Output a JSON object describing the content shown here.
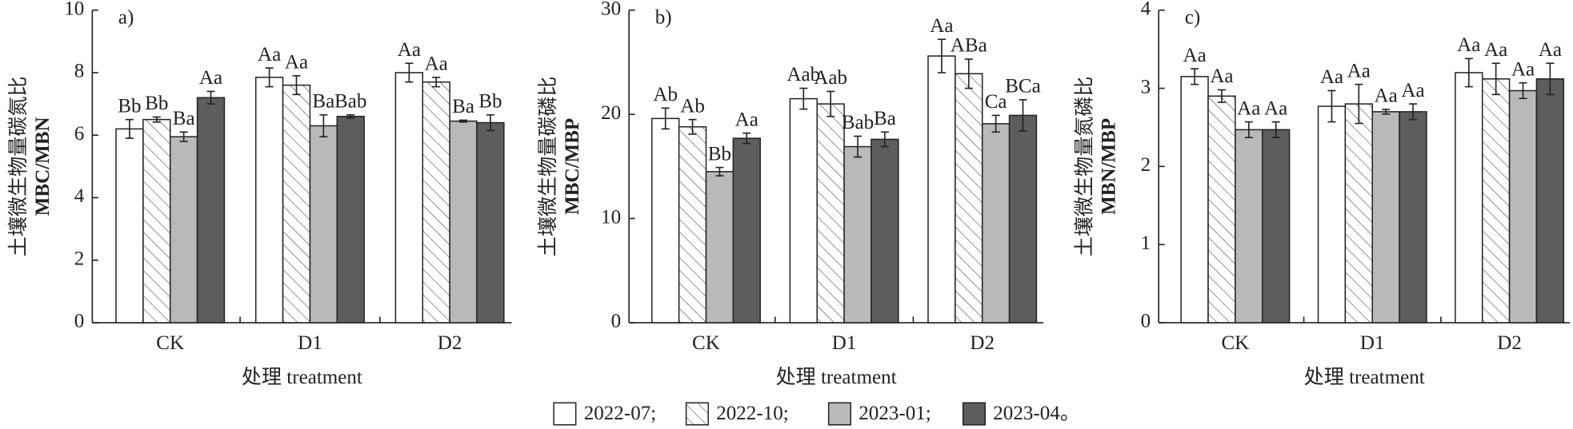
{
  "chart_data": [
    {
      "type": "bar",
      "panel": "a)",
      "ylabel": [
        "土壤微生物量碳氮比",
        "MBC/MBN"
      ],
      "xlabel": "处理 treatment",
      "categories": [
        "CK",
        "D1",
        "D2"
      ],
      "ylim": [
        0,
        10
      ],
      "yticks": [
        0,
        2,
        4,
        6,
        8,
        10
      ],
      "series": [
        {
          "color": "#ffffff",
          "hatch": false,
          "values": [
            6.2,
            7.85,
            8.0
          ],
          "errors": [
            0.3,
            0.3,
            0.3
          ],
          "letters": [
            "Bb",
            "Aa",
            "Aa"
          ]
        },
        {
          "color": "#ffffff",
          "hatch": true,
          "values": [
            6.5,
            7.6,
            7.7
          ],
          "errors": [
            0.08,
            0.3,
            0.15
          ],
          "letters": [
            "Bb",
            "Aa",
            "Aa"
          ]
        },
        {
          "color": "#b9b9b9",
          "hatch": false,
          "values": [
            5.95,
            6.3,
            6.45
          ],
          "errors": [
            0.15,
            0.35,
            0.03
          ],
          "letters": [
            "Ba",
            "Ba",
            "Ba"
          ]
        },
        {
          "color": "#5f5c5c",
          "hatch": false,
          "values": [
            7.2,
            6.6,
            6.4
          ],
          "errors": [
            0.2,
            0.05,
            0.25
          ],
          "letters": [
            "Aa",
            "Bab",
            "Bb"
          ]
        }
      ]
    },
    {
      "type": "bar",
      "panel": "b)",
      "ylabel": [
        "土壤微生物量碳磷比",
        "MBC/MBP"
      ],
      "xlabel": "处理 treatment",
      "categories": [
        "CK",
        "D1",
        "D2"
      ],
      "ylim": [
        0,
        30
      ],
      "yticks": [
        0,
        10,
        20,
        30
      ],
      "series": [
        {
          "color": "#ffffff",
          "hatch": false,
          "values": [
            19.6,
            21.5,
            25.6
          ],
          "errors": [
            1.0,
            1.0,
            1.6
          ],
          "letters": [
            "Ab",
            "Aab",
            "Aa"
          ]
        },
        {
          "color": "#ffffff",
          "hatch": true,
          "values": [
            18.8,
            21.0,
            23.9
          ],
          "errors": [
            0.7,
            1.2,
            1.4
          ],
          "letters": [
            "Ab",
            "Aab",
            "ABa"
          ]
        },
        {
          "color": "#b9b9b9",
          "hatch": false,
          "values": [
            14.5,
            16.9,
            19.1
          ],
          "errors": [
            0.4,
            1.0,
            0.8
          ],
          "letters": [
            "Bb",
            "Bab",
            "Ca"
          ]
        },
        {
          "color": "#5f5c5c",
          "hatch": false,
          "values": [
            17.7,
            17.6,
            19.9
          ],
          "errors": [
            0.5,
            0.7,
            1.5
          ],
          "letters": [
            "Aa",
            "Ba",
            "BCa"
          ]
        }
      ]
    },
    {
      "type": "bar",
      "panel": "c)",
      "ylabel": [
        "土壤微生物量氮磷比",
        "MBN/MBP"
      ],
      "xlabel": "处理 treatment",
      "categories": [
        "CK",
        "D1",
        "D2"
      ],
      "ylim": [
        0,
        4
      ],
      "yticks": [
        0,
        1,
        2,
        3,
        4
      ],
      "series": [
        {
          "color": "#ffffff",
          "hatch": false,
          "values": [
            3.15,
            2.77,
            3.2
          ],
          "errors": [
            0.1,
            0.2,
            0.18
          ],
          "letters": [
            "Aa",
            "Aa",
            "Aa"
          ]
        },
        {
          "color": "#ffffff",
          "hatch": true,
          "values": [
            2.9,
            2.8,
            3.12
          ],
          "errors": [
            0.08,
            0.25,
            0.2
          ],
          "letters": [
            "Aa",
            "Aa",
            "Aa"
          ]
        },
        {
          "color": "#b9b9b9",
          "hatch": false,
          "values": [
            2.47,
            2.7,
            2.97
          ],
          "errors": [
            0.1,
            0.03,
            0.1
          ],
          "letters": [
            "Aa",
            "Aa",
            "Aa"
          ]
        },
        {
          "color": "#5f5c5c",
          "hatch": false,
          "values": [
            2.47,
            2.7,
            3.12
          ],
          "errors": [
            0.1,
            0.1,
            0.2
          ],
          "letters": [
            "Aa",
            "Aa",
            "Aa"
          ]
        }
      ]
    }
  ],
  "legend": [
    {
      "name": "2022-07;",
      "color": "#ffffff",
      "hatch": false
    },
    {
      "name": "2022-10;",
      "color": "#ffffff",
      "hatch": true
    },
    {
      "name": "2023-01;",
      "color": "#b9b9b9",
      "hatch": false
    },
    {
      "name": "2023-04。",
      "color": "#5f5c5c",
      "hatch": false
    }
  ]
}
